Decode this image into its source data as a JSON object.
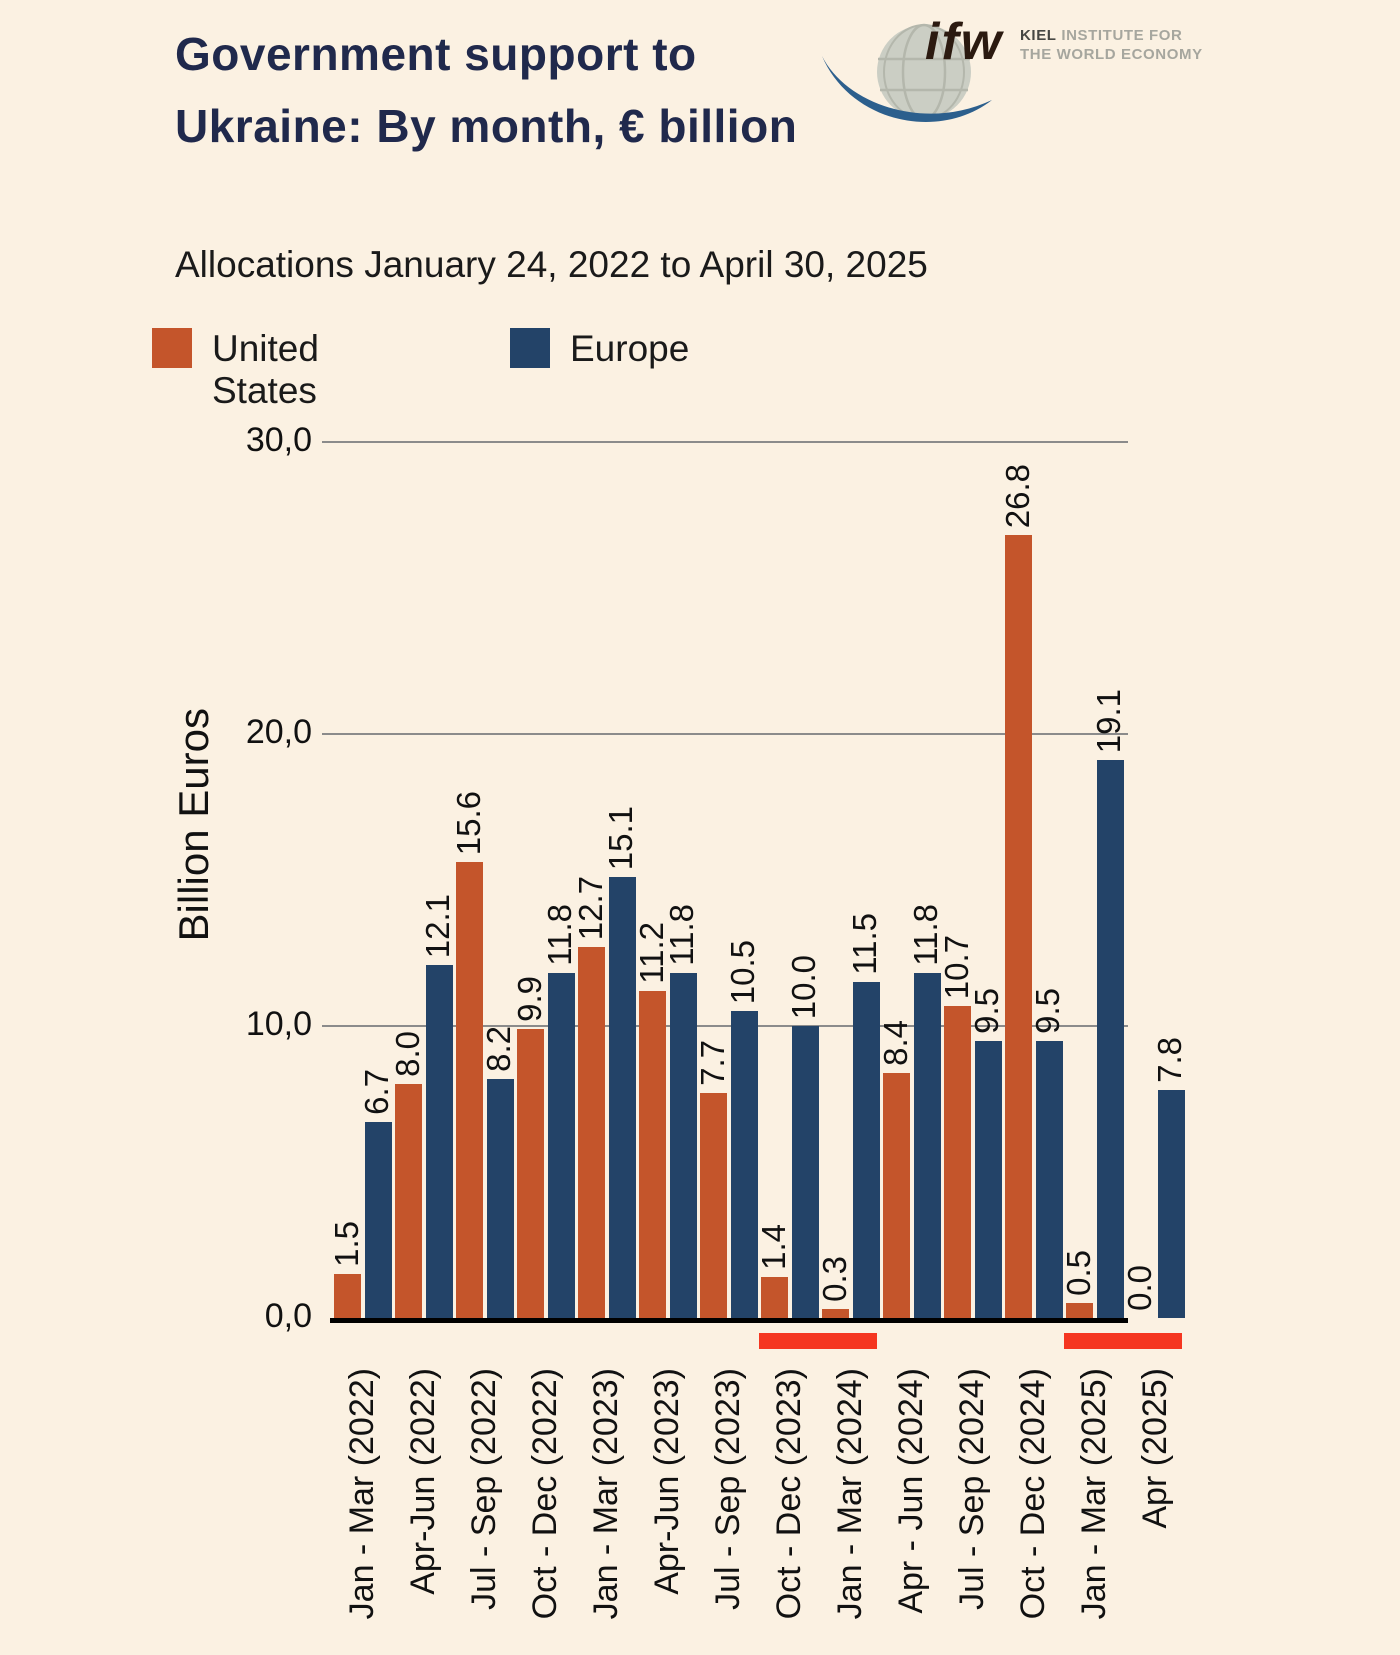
{
  "header": {
    "title": "Government support to Ukraine: By month, € billion",
    "subtitle": "Allocations January 24, 2022 to April 30, 2025"
  },
  "logo": {
    "wordmark": "ifw",
    "org_bold": "KIEL",
    "org_line1_rest": " INSTITUTE FOR",
    "org_line2": "THE WORLD ECONOMY"
  },
  "legend": [
    {
      "label": "United States",
      "color": "#C4552B"
    },
    {
      "label": "Europe",
      "color": "#234368"
    }
  ],
  "chart_data": {
    "type": "bar",
    "title": "Government support to Ukraine: By month, € billion",
    "subtitle": "Allocations January 24, 2022 to April 30, 2025",
    "ylabel": "Billion Euros",
    "xlabel": "",
    "ylim": [
      0,
      30
    ],
    "ytick_values": [
      0,
      10,
      20,
      30
    ],
    "ytick_labels": [
      "0,0",
      "10,0",
      "20,0",
      "30,0"
    ],
    "grid": true,
    "legend_position": "top-left",
    "categories": [
      "Jan - Mar (2022)",
      "Apr-Jun (2022)",
      "Jul - Sep (2022)",
      "Oct - Dec (2022)",
      "Jan - Mar (2023)",
      "Apr-Jun (2023)",
      "Jul - Sep (2023)",
      "Oct - Dec (2023)",
      "Jan - Mar (2024)",
      "Apr - Jun (2024)",
      "Jul - Sep (2024)",
      "Oct - Dec (2024)",
      "Jan - Mar (2025)",
      "Apr (2025)"
    ],
    "series": [
      {
        "name": "United States",
        "color": "#C4552B",
        "values": [
          1.5,
          8.0,
          15.6,
          9.9,
          12.7,
          11.2,
          7.7,
          1.4,
          0.3,
          8.4,
          10.7,
          26.8,
          0.5,
          0.0
        ],
        "labels": [
          "1.5",
          "8.0",
          "15.6",
          "9.9",
          "12.7",
          "11.2",
          "7.7",
          "1.4",
          "0.3",
          "8.4",
          "10.7",
          "26.8",
          "0.5",
          "0.0"
        ]
      },
      {
        "name": "Europe",
        "color": "#234368",
        "values": [
          6.7,
          12.1,
          8.2,
          11.8,
          15.1,
          11.8,
          10.5,
          10.0,
          11.5,
          11.8,
          9.5,
          9.5,
          19.1,
          7.8
        ],
        "labels": [
          "6.7",
          "12.1",
          "8.2",
          "11.8",
          "15.1",
          "11.8",
          "10.5",
          "10.0",
          "11.5",
          "11.8",
          "9.5",
          "9.5",
          "19.1",
          "7.8"
        ]
      }
    ],
    "highlights": {
      "color": "#F53620",
      "ranges": [
        {
          "from_index": 7,
          "to_index": 8
        },
        {
          "from_index": 12,
          "to_index": 13
        }
      ]
    }
  }
}
